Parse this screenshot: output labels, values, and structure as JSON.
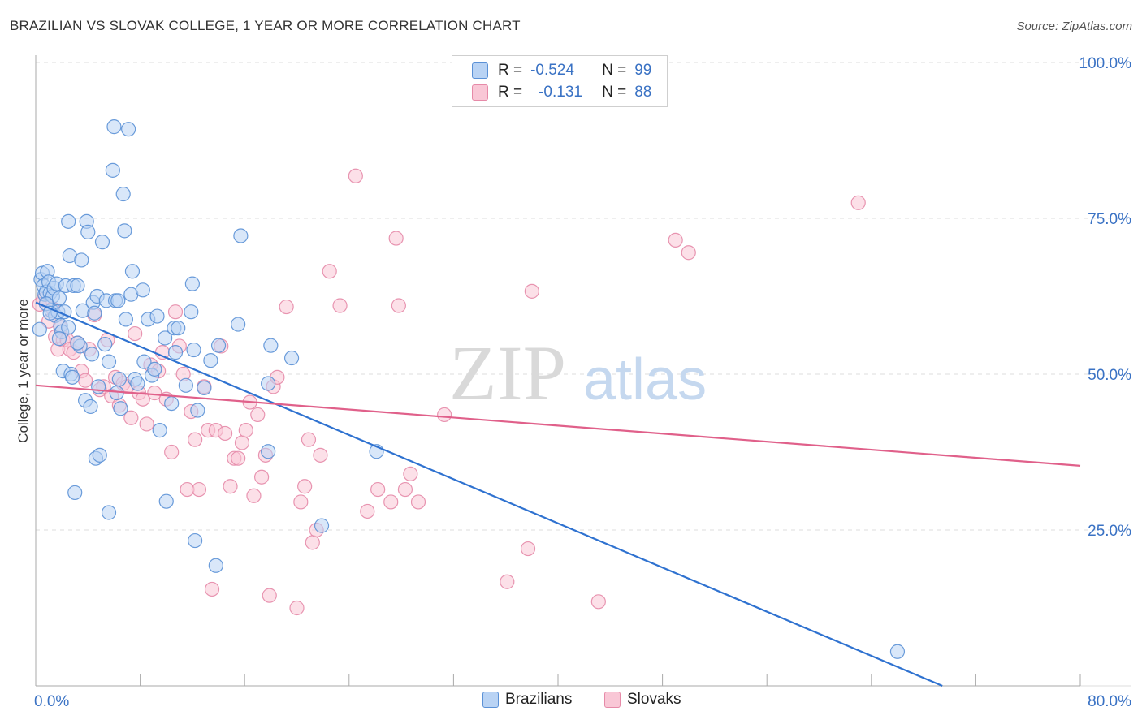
{
  "header": {
    "title": "BRAZILIAN VS SLOVAK COLLEGE, 1 YEAR OR MORE CORRELATION CHART",
    "source": "Source: ZipAtlas.com"
  },
  "legend": {
    "rows": [
      {
        "r_label": "R =",
        "r_value": "-0.524",
        "n_label": "N =",
        "n_value": "99"
      },
      {
        "r_label": "R =",
        "r_value": "-0.131",
        "n_label": "N =",
        "n_value": "88"
      }
    ]
  },
  "watermark": {
    "zip": "ZIP",
    "atlas": "atlas"
  },
  "colors": {
    "brazilians_fill": "#b9d3f4",
    "brazilians_stroke": "#5b91d6",
    "brazilians_line": "#2f72d0",
    "slovaks_fill": "#f9c7d6",
    "slovaks_stroke": "#e68aa8",
    "slovaks_line": "#e0608a",
    "tick_text": "#3a72c4",
    "grid": "#dddddd"
  },
  "chart_data": {
    "type": "scatter",
    "title": "BRAZILIAN VS SLOVAK COLLEGE, 1 YEAR OR MORE CORRELATION CHART",
    "xlabel": "",
    "ylabel": "College, 1 year or more",
    "xlim": [
      0,
      80
    ],
    "ylim": [
      0,
      100
    ],
    "x_tick_labels": [
      "0.0%",
      "80.0%"
    ],
    "y_tick_labels": [
      "25.0%",
      "50.0%",
      "75.0%",
      "100.0%"
    ],
    "y_ticks": [
      25,
      50,
      75,
      100
    ],
    "x_minor_ticks": [
      0,
      8,
      16,
      24,
      32,
      40,
      48,
      56,
      64,
      72,
      80
    ],
    "grid": true,
    "legend_position": "top-center",
    "series": [
      {
        "name": "Brazilians",
        "points": [
          [
            0.3,
            57.2
          ],
          [
            0.4,
            65.2
          ],
          [
            0.5,
            66.2
          ],
          [
            0.6,
            64.2
          ],
          [
            0.7,
            62.8
          ],
          [
            0.8,
            63.2
          ],
          [
            0.9,
            66.5
          ],
          [
            1.0,
            64.8
          ],
          [
            1.1,
            63.0
          ],
          [
            1.2,
            60.2
          ],
          [
            1.3,
            62.5
          ],
          [
            1.4,
            63.8
          ],
          [
            1.5,
            59.4
          ],
          [
            1.6,
            64.5
          ],
          [
            1.7,
            60.0
          ],
          [
            1.8,
            62.2
          ],
          [
            1.9,
            57.8
          ],
          [
            2.0,
            56.8
          ],
          [
            2.1,
            50.5
          ],
          [
            2.2,
            60.0
          ],
          [
            2.3,
            64.2
          ],
          [
            2.5,
            74.5
          ],
          [
            2.6,
            69.0
          ],
          [
            2.7,
            50.0
          ],
          [
            2.8,
            49.5
          ],
          [
            2.9,
            64.2
          ],
          [
            3.0,
            31.0
          ],
          [
            3.2,
            64.2
          ],
          [
            3.4,
            54.5
          ],
          [
            3.5,
            68.3
          ],
          [
            3.6,
            60.2
          ],
          [
            3.8,
            45.8
          ],
          [
            3.9,
            74.5
          ],
          [
            4.0,
            72.8
          ],
          [
            4.2,
            44.8
          ],
          [
            4.3,
            53.2
          ],
          [
            4.4,
            61.5
          ],
          [
            4.5,
            59.8
          ],
          [
            4.6,
            36.5
          ],
          [
            4.7,
            62.5
          ],
          [
            4.9,
            37.0
          ],
          [
            5.1,
            71.2
          ],
          [
            5.3,
            54.8
          ],
          [
            5.4,
            61.8
          ],
          [
            5.6,
            27.8
          ],
          [
            5.9,
            82.7
          ],
          [
            6.0,
            89.7
          ],
          [
            6.1,
            61.8
          ],
          [
            6.3,
            61.8
          ],
          [
            6.4,
            49.2
          ],
          [
            6.5,
            44.5
          ],
          [
            6.7,
            78.9
          ],
          [
            6.8,
            73.0
          ],
          [
            6.9,
            58.8
          ],
          [
            7.1,
            89.3
          ],
          [
            7.3,
            62.8
          ],
          [
            7.4,
            66.5
          ],
          [
            7.6,
            49.2
          ],
          [
            8.2,
            63.5
          ],
          [
            8.6,
            58.8
          ],
          [
            8.9,
            49.8
          ],
          [
            9.1,
            50.8
          ],
          [
            9.3,
            59.3
          ],
          [
            9.5,
            41.0
          ],
          [
            9.9,
            55.8
          ],
          [
            10.0,
            29.6
          ],
          [
            10.4,
            45.3
          ],
          [
            10.6,
            57.4
          ],
          [
            10.9,
            57.4
          ],
          [
            11.9,
            60.0
          ],
          [
            12.0,
            64.5
          ],
          [
            12.1,
            53.9
          ],
          [
            12.2,
            23.3
          ],
          [
            12.4,
            44.2
          ],
          [
            13.4,
            52.2
          ],
          [
            13.8,
            19.3
          ],
          [
            14.0,
            54.6
          ],
          [
            15.5,
            58.0
          ],
          [
            15.7,
            72.2
          ],
          [
            17.8,
            37.6
          ],
          [
            17.8,
            48.5
          ],
          [
            18.0,
            54.6
          ],
          [
            19.6,
            52.6
          ],
          [
            21.9,
            25.7
          ],
          [
            26.1,
            37.6
          ],
          [
            66.0,
            5.5
          ],
          [
            0.8,
            61.3
          ],
          [
            1.1,
            59.8
          ],
          [
            1.8,
            55.7
          ],
          [
            2.5,
            57.5
          ],
          [
            3.2,
            55.0
          ],
          [
            4.8,
            48.0
          ],
          [
            5.6,
            52.0
          ],
          [
            6.2,
            47.0
          ],
          [
            7.8,
            48.5
          ],
          [
            8.3,
            52.0
          ],
          [
            10.7,
            53.5
          ],
          [
            11.5,
            48.2
          ],
          [
            12.9,
            47.8
          ]
        ]
      },
      {
        "name": "Slovaks",
        "points": [
          [
            0.3,
            61.2
          ],
          [
            0.6,
            62.0
          ],
          [
            1.0,
            58.5
          ],
          [
            1.3,
            60.5
          ],
          [
            1.5,
            56.0
          ],
          [
            1.7,
            54.0
          ],
          [
            1.9,
            57.5
          ],
          [
            2.1,
            55.5
          ],
          [
            2.4,
            55.5
          ],
          [
            2.6,
            54.0
          ],
          [
            2.9,
            53.5
          ],
          [
            3.2,
            55.0
          ],
          [
            3.5,
            50.5
          ],
          [
            3.8,
            49.0
          ],
          [
            4.1,
            54.0
          ],
          [
            4.5,
            59.5
          ],
          [
            4.9,
            47.5
          ],
          [
            5.2,
            48.0
          ],
          [
            5.5,
            55.5
          ],
          [
            5.8,
            46.5
          ],
          [
            6.1,
            49.5
          ],
          [
            6.4,
            45.0
          ],
          [
            6.7,
            48.5
          ],
          [
            7.0,
            48.0
          ],
          [
            7.3,
            43.0
          ],
          [
            7.6,
            56.5
          ],
          [
            7.9,
            47.0
          ],
          [
            8.2,
            46.0
          ],
          [
            8.5,
            42.0
          ],
          [
            8.8,
            51.5
          ],
          [
            9.1,
            47.0
          ],
          [
            9.4,
            50.5
          ],
          [
            9.7,
            53.5
          ],
          [
            10.0,
            46.0
          ],
          [
            10.4,
            37.5
          ],
          [
            10.7,
            60.0
          ],
          [
            11.0,
            54.5
          ],
          [
            11.3,
            50.0
          ],
          [
            11.6,
            31.5
          ],
          [
            11.9,
            44.0
          ],
          [
            12.2,
            39.5
          ],
          [
            12.5,
            31.5
          ],
          [
            12.9,
            48.0
          ],
          [
            13.2,
            41.0
          ],
          [
            13.5,
            15.5
          ],
          [
            13.8,
            41.0
          ],
          [
            14.2,
            54.5
          ],
          [
            14.5,
            40.5
          ],
          [
            14.9,
            32.0
          ],
          [
            15.2,
            36.5
          ],
          [
            15.5,
            36.5
          ],
          [
            15.8,
            39.0
          ],
          [
            16.1,
            41.0
          ],
          [
            16.4,
            45.5
          ],
          [
            16.7,
            30.5
          ],
          [
            17.0,
            43.5
          ],
          [
            17.3,
            33.5
          ],
          [
            17.6,
            37.0
          ],
          [
            17.9,
            14.5
          ],
          [
            18.2,
            48.0
          ],
          [
            18.5,
            49.5
          ],
          [
            19.2,
            60.8
          ],
          [
            20.0,
            12.5
          ],
          [
            20.3,
            29.5
          ],
          [
            20.6,
            32.0
          ],
          [
            20.9,
            39.5
          ],
          [
            21.2,
            23.0
          ],
          [
            21.5,
            25.0
          ],
          [
            21.8,
            37.0
          ],
          [
            22.5,
            66.5
          ],
          [
            23.3,
            61.0
          ],
          [
            24.5,
            81.8
          ],
          [
            25.4,
            28.0
          ],
          [
            26.2,
            31.5
          ],
          [
            27.2,
            29.5
          ],
          [
            27.6,
            71.8
          ],
          [
            27.8,
            61.0
          ],
          [
            28.3,
            31.5
          ],
          [
            28.7,
            34.0
          ],
          [
            29.3,
            29.5
          ],
          [
            31.3,
            43.5
          ],
          [
            36.1,
            16.7
          ],
          [
            37.7,
            22.0
          ],
          [
            38.0,
            63.3
          ],
          [
            43.1,
            13.5
          ],
          [
            49.0,
            71.5
          ],
          [
            50.0,
            69.5
          ],
          [
            63.0,
            77.5
          ]
        ]
      }
    ],
    "trend_lines": [
      {
        "series": "Brazilians",
        "x": [
          0,
          70
        ],
        "y": [
          61.5,
          -0.5
        ]
      },
      {
        "series": "Slovaks",
        "x": [
          0,
          80
        ],
        "y": [
          48.2,
          35.3
        ]
      }
    ]
  },
  "bottom_legend": {
    "items": [
      "Brazilians",
      "Slovaks"
    ]
  }
}
